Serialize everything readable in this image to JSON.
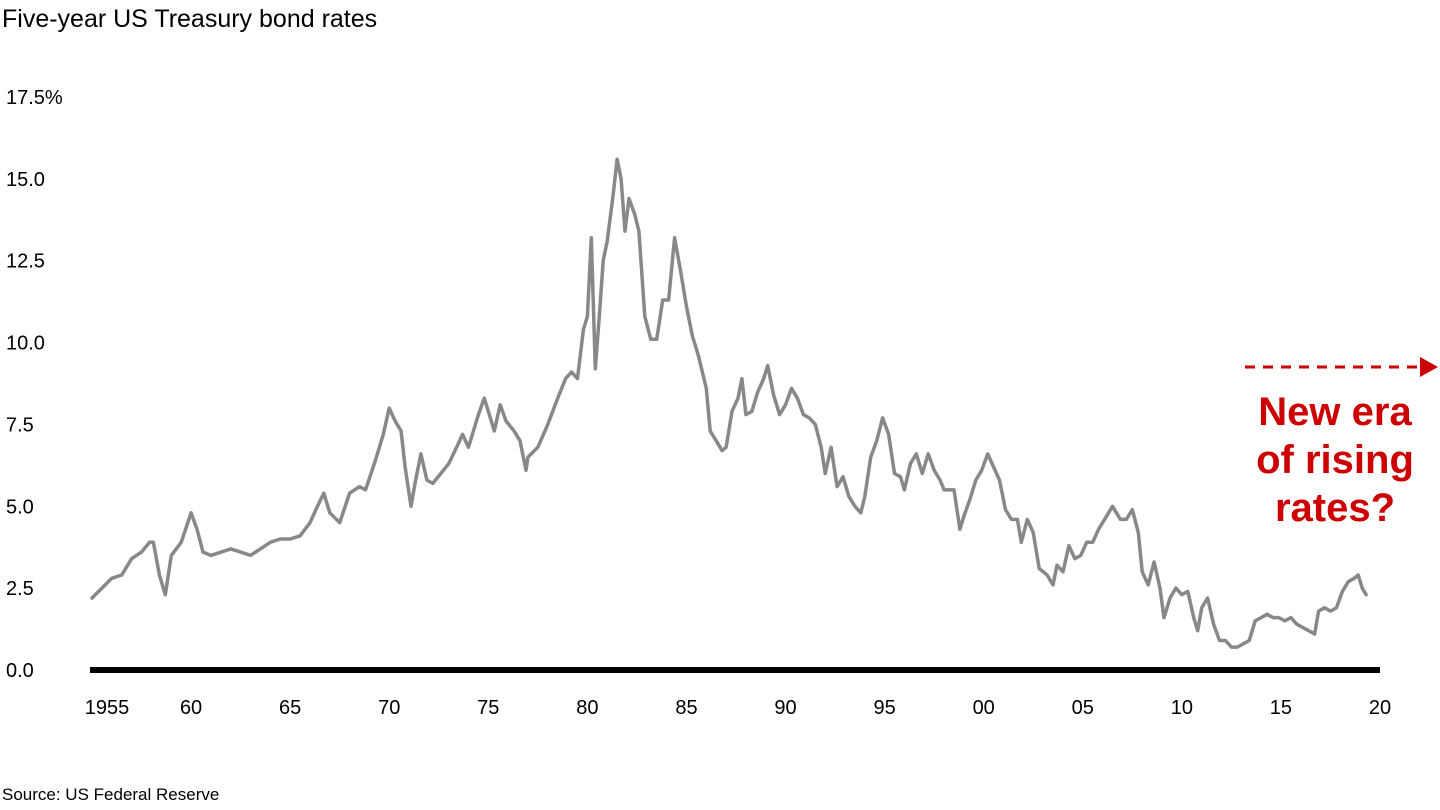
{
  "title": "Five-year US Treasury bond rates",
  "source": "Source: US Federal Reserve",
  "annotation": {
    "text": "New era\nof rising\nrates?",
    "color": "#cc0000"
  },
  "colors": {
    "line": "#888888",
    "axis": "#000000",
    "annotation": "#cc0000"
  },
  "chart_data": {
    "type": "line",
    "title": "Five-year US Treasury bond rates",
    "xlabel": "",
    "ylabel": "",
    "xlim": [
      1955,
      2020
    ],
    "ylim": [
      0,
      17.5
    ],
    "y_ticks": [
      0,
      2.5,
      5,
      7.5,
      10,
      12.5,
      15,
      17.5
    ],
    "y_tick_labels": [
      "0.0",
      "2.5",
      "5.0",
      "7.5",
      "10.0",
      "12.5",
      "15.0",
      "17.5%"
    ],
    "x_ticks": [
      1955,
      1960,
      1965,
      1970,
      1975,
      1980,
      1985,
      1990,
      1995,
      2000,
      2005,
      2010,
      2015,
      2020
    ],
    "x_tick_labels": [
      "1955",
      "60",
      "65",
      "70",
      "75",
      "80",
      "85",
      "90",
      "95",
      "00",
      "05",
      "10",
      "15",
      "20"
    ],
    "grid": false,
    "series": [
      {
        "values": [
          [
            1955.0,
            2.2
          ],
          [
            1955.5,
            2.5
          ],
          [
            1956.0,
            2.8
          ],
          [
            1956.5,
            2.9
          ],
          [
            1957.0,
            3.4
          ],
          [
            1957.5,
            3.6
          ],
          [
            1957.9,
            3.9
          ],
          [
            1958.1,
            3.9
          ],
          [
            1958.4,
            2.9
          ],
          [
            1958.7,
            2.3
          ],
          [
            1959.0,
            3.5
          ],
          [
            1959.5,
            3.9
          ],
          [
            1960.0,
            4.8
          ],
          [
            1960.3,
            4.3
          ],
          [
            1960.6,
            3.6
          ],
          [
            1961.0,
            3.5
          ],
          [
            1962.0,
            3.7
          ],
          [
            1962.5,
            3.6
          ],
          [
            1963.0,
            3.5
          ],
          [
            1963.5,
            3.7
          ],
          [
            1964.0,
            3.9
          ],
          [
            1964.5,
            4.0
          ],
          [
            1965.0,
            4.0
          ],
          [
            1965.5,
            4.1
          ],
          [
            1966.0,
            4.5
          ],
          [
            1966.3,
            4.9
          ],
          [
            1966.7,
            5.4
          ],
          [
            1967.0,
            4.8
          ],
          [
            1967.5,
            4.5
          ],
          [
            1968.0,
            5.4
          ],
          [
            1968.5,
            5.6
          ],
          [
            1968.8,
            5.5
          ],
          [
            1969.3,
            6.4
          ],
          [
            1969.7,
            7.2
          ],
          [
            1970.0,
            8.0
          ],
          [
            1970.3,
            7.6
          ],
          [
            1970.6,
            7.3
          ],
          [
            1970.8,
            6.2
          ],
          [
            1971.1,
            5.0
          ],
          [
            1971.3,
            5.7
          ],
          [
            1971.6,
            6.6
          ],
          [
            1971.9,
            5.8
          ],
          [
            1972.2,
            5.7
          ],
          [
            1972.6,
            6.0
          ],
          [
            1973.0,
            6.3
          ],
          [
            1973.4,
            6.8
          ],
          [
            1973.7,
            7.2
          ],
          [
            1974.0,
            6.8
          ],
          [
            1974.5,
            7.8
          ],
          [
            1974.8,
            8.3
          ],
          [
            1975.0,
            7.9
          ],
          [
            1975.3,
            7.3
          ],
          [
            1975.6,
            8.1
          ],
          [
            1975.9,
            7.6
          ],
          [
            1976.3,
            7.3
          ],
          [
            1976.6,
            7.0
          ],
          [
            1976.9,
            6.1
          ],
          [
            1977.0,
            6.5
          ],
          [
            1977.5,
            6.8
          ],
          [
            1978.0,
            7.5
          ],
          [
            1978.5,
            8.3
          ],
          [
            1978.9,
            8.9
          ],
          [
            1979.2,
            9.1
          ],
          [
            1979.5,
            8.9
          ],
          [
            1979.8,
            10.4
          ],
          [
            1980.0,
            10.8
          ],
          [
            1980.2,
            13.2
          ],
          [
            1980.4,
            9.2
          ],
          [
            1980.6,
            10.8
          ],
          [
            1980.8,
            12.5
          ],
          [
            1981.0,
            13.1
          ],
          [
            1981.3,
            14.5
          ],
          [
            1981.5,
            15.6
          ],
          [
            1981.7,
            15.0
          ],
          [
            1981.9,
            13.4
          ],
          [
            1982.1,
            14.4
          ],
          [
            1982.4,
            13.9
          ],
          [
            1982.6,
            13.4
          ],
          [
            1982.9,
            10.8
          ],
          [
            1983.2,
            10.1
          ],
          [
            1983.5,
            10.1
          ],
          [
            1983.8,
            11.3
          ],
          [
            1984.1,
            11.3
          ],
          [
            1984.4,
            13.2
          ],
          [
            1984.7,
            12.2
          ],
          [
            1985.0,
            11.1
          ],
          [
            1985.3,
            10.2
          ],
          [
            1985.6,
            9.6
          ],
          [
            1986.0,
            8.6
          ],
          [
            1986.2,
            7.3
          ],
          [
            1986.5,
            7.0
          ],
          [
            1986.8,
            6.7
          ],
          [
            1987.0,
            6.8
          ],
          [
            1987.3,
            7.9
          ],
          [
            1987.6,
            8.3
          ],
          [
            1987.8,
            8.9
          ],
          [
            1988.0,
            7.8
          ],
          [
            1988.3,
            7.9
          ],
          [
            1988.6,
            8.5
          ],
          [
            1988.9,
            8.9
          ],
          [
            1989.1,
            9.3
          ],
          [
            1989.4,
            8.4
          ],
          [
            1989.7,
            7.8
          ],
          [
            1990.0,
            8.1
          ],
          [
            1990.3,
            8.6
          ],
          [
            1990.6,
            8.3
          ],
          [
            1990.9,
            7.8
          ],
          [
            1991.2,
            7.7
          ],
          [
            1991.5,
            7.5
          ],
          [
            1991.8,
            6.8
          ],
          [
            1992.0,
            6.0
          ],
          [
            1992.3,
            6.8
          ],
          [
            1992.6,
            5.6
          ],
          [
            1992.9,
            5.9
          ],
          [
            1993.2,
            5.3
          ],
          [
            1993.5,
            5.0
          ],
          [
            1993.8,
            4.8
          ],
          [
            1994.0,
            5.3
          ],
          [
            1994.3,
            6.5
          ],
          [
            1994.6,
            7.0
          ],
          [
            1994.9,
            7.7
          ],
          [
            1995.2,
            7.2
          ],
          [
            1995.5,
            6.0
          ],
          [
            1995.8,
            5.9
          ],
          [
            1996.0,
            5.5
          ],
          [
            1996.3,
            6.3
          ],
          [
            1996.6,
            6.6
          ],
          [
            1996.9,
            6.0
          ],
          [
            1997.2,
            6.6
          ],
          [
            1997.5,
            6.1
          ],
          [
            1997.8,
            5.8
          ],
          [
            1998.0,
            5.5
          ],
          [
            1998.5,
            5.5
          ],
          [
            1998.8,
            4.3
          ],
          [
            1999.0,
            4.7
          ],
          [
            1999.3,
            5.2
          ],
          [
            1999.6,
            5.8
          ],
          [
            1999.9,
            6.1
          ],
          [
            2000.2,
            6.6
          ],
          [
            2000.5,
            6.2
          ],
          [
            2000.8,
            5.8
          ],
          [
            2001.1,
            4.9
          ],
          [
            2001.4,
            4.6
          ],
          [
            2001.7,
            4.6
          ],
          [
            2001.9,
            3.9
          ],
          [
            2002.2,
            4.6
          ],
          [
            2002.5,
            4.2
          ],
          [
            2002.8,
            3.1
          ],
          [
            2003.2,
            2.9
          ],
          [
            2003.5,
            2.6
          ],
          [
            2003.7,
            3.2
          ],
          [
            2004.0,
            3.0
          ],
          [
            2004.3,
            3.8
          ],
          [
            2004.6,
            3.4
          ],
          [
            2004.9,
            3.5
          ],
          [
            2005.2,
            3.9
          ],
          [
            2005.5,
            3.9
          ],
          [
            2005.8,
            4.3
          ],
          [
            2006.1,
            4.6
          ],
          [
            2006.5,
            5.0
          ],
          [
            2006.9,
            4.6
          ],
          [
            2007.2,
            4.6
          ],
          [
            2007.5,
            4.9
          ],
          [
            2007.8,
            4.2
          ],
          [
            2008.0,
            3.0
          ],
          [
            2008.3,
            2.6
          ],
          [
            2008.6,
            3.3
          ],
          [
            2008.9,
            2.5
          ],
          [
            2009.1,
            1.6
          ],
          [
            2009.4,
            2.2
          ],
          [
            2009.7,
            2.5
          ],
          [
            2010.0,
            2.3
          ],
          [
            2010.3,
            2.4
          ],
          [
            2010.6,
            1.6
          ],
          [
            2010.8,
            1.2
          ],
          [
            2011.0,
            1.9
          ],
          [
            2011.3,
            2.2
          ],
          [
            2011.6,
            1.4
          ],
          [
            2011.9,
            0.9
          ],
          [
            2012.2,
            0.9
          ],
          [
            2012.5,
            0.7
          ],
          [
            2012.8,
            0.7
          ],
          [
            2013.1,
            0.8
          ],
          [
            2013.4,
            0.9
          ],
          [
            2013.7,
            1.5
          ],
          [
            2014.0,
            1.6
          ],
          [
            2014.3,
            1.7
          ],
          [
            2014.6,
            1.6
          ],
          [
            2014.9,
            1.6
          ],
          [
            2015.2,
            1.5
          ],
          [
            2015.5,
            1.6
          ],
          [
            2015.8,
            1.4
          ],
          [
            2016.1,
            1.3
          ],
          [
            2016.4,
            1.2
          ],
          [
            2016.7,
            1.1
          ],
          [
            2016.9,
            1.8
          ],
          [
            2017.2,
            1.9
          ],
          [
            2017.5,
            1.8
          ],
          [
            2017.8,
            1.9
          ],
          [
            2018.1,
            2.4
          ],
          [
            2018.4,
            2.7
          ],
          [
            2018.7,
            2.8
          ],
          [
            2018.9,
            2.9
          ],
          [
            2019.1,
            2.5
          ],
          [
            2019.3,
            2.3
          ]
        ]
      }
    ]
  }
}
